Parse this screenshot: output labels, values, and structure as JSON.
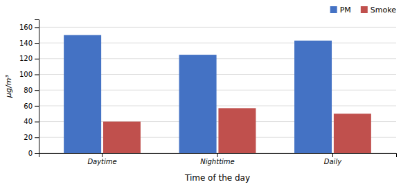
{
  "chart_data": {
    "type": "bar",
    "categories": [
      "Daytime",
      "Nighttime",
      "Daily"
    ],
    "series": [
      {
        "name": "PM",
        "color": "#4472C4",
        "values": [
          150,
          125,
          143
        ]
      },
      {
        "name": "Smoke",
        "color": "#C0504D",
        "values": [
          40,
          57,
          50
        ]
      }
    ],
    "xlabel": "Time of the day",
    "ylabel": "μg/m³",
    "ylim": [
      0,
      170
    ],
    "yticks": [
      0,
      20,
      40,
      60,
      80,
      100,
      120,
      140,
      160
    ],
    "grid": true,
    "legend": "upper right"
  }
}
